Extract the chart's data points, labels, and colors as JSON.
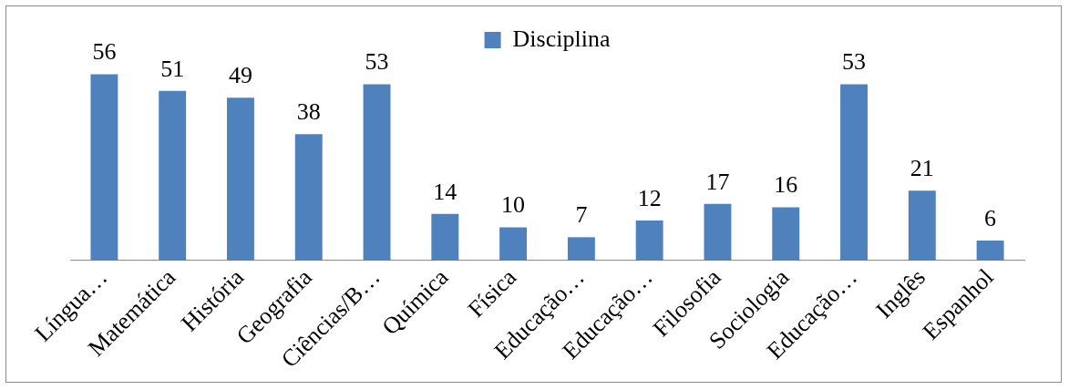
{
  "chart_data": {
    "type": "bar",
    "categories": [
      "Língua…",
      "Matemática",
      "História",
      "Geografia",
      "Ciências/B…",
      "Química",
      "Física",
      "Educação…",
      "Educação…",
      "Filosofia",
      "Sociologia",
      "Educação…",
      "Inglês",
      "Espanhol"
    ],
    "series": [
      {
        "name": "Disciplina",
        "color": "#4f81bd",
        "values": [
          56,
          51,
          49,
          38,
          53,
          14,
          10,
          7,
          12,
          17,
          16,
          53,
          21,
          6
        ]
      }
    ],
    "data_labels": true,
    "grid": false,
    "legend": "top"
  }
}
